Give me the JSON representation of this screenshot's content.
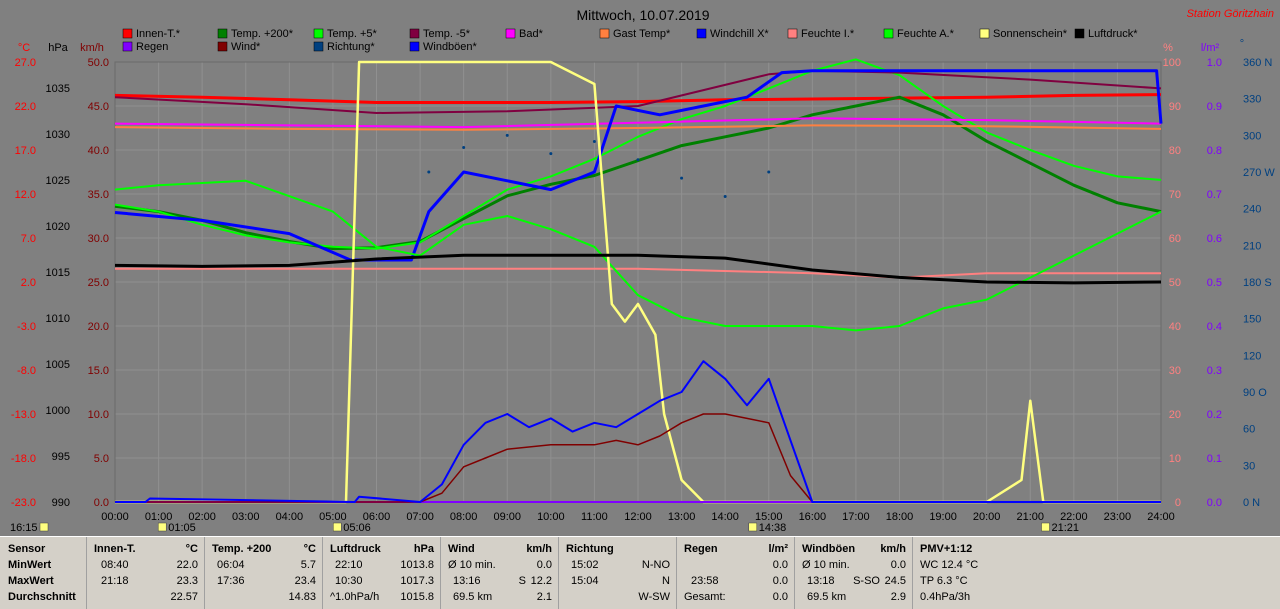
{
  "title": "Mittwoch, 10.07.2019",
  "station": "Station Göritzhain",
  "colors": {
    "background": "#808080",
    "innen_t": "#ff0000",
    "temp200": "#008000",
    "temp5": "#00ff00",
    "temp_minus5": "#800040",
    "bad": "#ff00ff",
    "gast": "#ff8040",
    "windchill": "#0000ff",
    "feuchte_i": "#ff8080",
    "feuchte_a": "#00ff00",
    "sonne": "#ffff80",
    "luftdruck": "#000000",
    "regen": "#8000ff",
    "wind": "#800000",
    "richtung": "#004080",
    "windboeen": "#0000ff"
  },
  "axes": {
    "celsius": {
      "unit": "°C",
      "ticks": [
        "27.0",
        "22.0",
        "17.0",
        "12.0",
        "7.0",
        "2.0",
        "-3.0",
        "-8.0",
        "-13.0",
        "-18.0",
        "-23.0"
      ]
    },
    "hpa": {
      "unit": "hPa",
      "ticks": [
        "1035",
        "1030",
        "1025",
        "1020",
        "1015",
        "1010",
        "1005",
        "1000",
        "995",
        "990"
      ]
    },
    "kmh": {
      "unit": "km/h",
      "ticks": [
        "50.0",
        "45.0",
        "40.0",
        "35.0",
        "30.0",
        "25.0",
        "20.0",
        "15.0",
        "10.0",
        "5.0",
        "0.0"
      ]
    },
    "percent": {
      "unit": "%",
      "ticks": [
        "100",
        "90",
        "80",
        "70",
        "60",
        "50",
        "40",
        "30",
        "20",
        "10",
        "0"
      ]
    },
    "lm2": {
      "unit": "l/m²",
      "ticks": [
        "1.0",
        "0.9",
        "0.8",
        "0.7",
        "0.6",
        "0.5",
        "0.4",
        "0.3",
        "0.2",
        "0.1",
        "0.0"
      ]
    },
    "direction": {
      "unit": "°",
      "ticks": [
        "360 N",
        "330",
        "300",
        "270 W",
        "240",
        "210",
        "180 S",
        "150",
        "120",
        "90 O",
        "60",
        "30",
        "0 N"
      ]
    },
    "time": [
      "00:00",
      "01:00",
      "02:00",
      "03:00",
      "04:00",
      "05:00",
      "06:00",
      "07:00",
      "08:00",
      "09:00",
      "10:00",
      "11:00",
      "12:00",
      "13:00",
      "14:00",
      "15:00",
      "16:00",
      "17:00",
      "18:00",
      "19:00",
      "20:00",
      "21:00",
      "22:00",
      "23:00",
      "24:00"
    ]
  },
  "markers": {
    "moonset": "01:05",
    "sunrise": "05:06",
    "moonrise": "14:38",
    "sunset": "21:21",
    "daylight": "16:15"
  },
  "legend": [
    {
      "label": "Innen-T.*",
      "color": "#ff0000"
    },
    {
      "label": "Temp. +200*",
      "color": "#008000"
    },
    {
      "label": "Temp. +5*",
      "color": "#00ff00"
    },
    {
      "label": "Temp. -5*",
      "color": "#800040"
    },
    {
      "label": "Bad*",
      "color": "#ff00ff"
    },
    {
      "label": "Gast Temp*",
      "color": "#ff8040"
    },
    {
      "label": "Windchill X*",
      "color": "#0000ff"
    },
    {
      "label": "Feuchte I.*",
      "color": "#ff8080"
    },
    {
      "label": "Feuchte A.*",
      "color": "#00ff00"
    },
    {
      "label": "Sonnenschein*",
      "color": "#ffff80"
    },
    {
      "label": "Luftdruck*",
      "color": "#000000"
    },
    {
      "label": "Regen",
      "color": "#8000ff"
    },
    {
      "label": "Wind*",
      "color": "#800000"
    },
    {
      "label": "Richtung*",
      "color": "#004080"
    },
    {
      "label": "Windböen*",
      "color": "#0000ff"
    }
  ],
  "chart_data": {
    "type": "line",
    "x_unit": "h",
    "series": [
      {
        "name": "Innen-T.*",
        "axis": "celsius",
        "x": [
          0,
          2,
          4,
          6,
          8,
          10,
          12,
          14,
          16,
          18,
          20,
          22,
          24
        ],
        "y": [
          23.2,
          23.0,
          22.7,
          22.4,
          22.4,
          22.4,
          22.5,
          22.7,
          22.8,
          22.9,
          23.0,
          23.2,
          23.3
        ]
      },
      {
        "name": "Temp. +200*",
        "axis": "celsius",
        "x": [
          0,
          1,
          2,
          3,
          4,
          5,
          6,
          7,
          8,
          9,
          10,
          11,
          12,
          13,
          14,
          15,
          16,
          17,
          18,
          19,
          20,
          21,
          22,
          23,
          24
        ],
        "y": [
          10.6,
          10.0,
          9.0,
          7.6,
          6.6,
          5.8,
          5.9,
          6.6,
          9.2,
          11.8,
          13.1,
          14.1,
          15.8,
          17.5,
          18.5,
          19.5,
          21.0,
          22.0,
          23.0,
          21.0,
          18.0,
          15.5,
          13.0,
          11.0,
          10.0
        ]
      },
      {
        "name": "Temp. +5*",
        "axis": "celsius",
        "x": [
          0,
          1,
          2,
          3,
          4,
          5,
          6,
          7,
          8,
          9,
          10,
          11,
          12,
          13,
          14,
          15,
          16,
          17,
          18,
          19,
          20,
          21,
          22,
          23,
          24
        ],
        "y": [
          10.8,
          10.0,
          8.5,
          7.3,
          6.5,
          6.0,
          5.8,
          6.5,
          9.5,
          12.5,
          14.0,
          16.0,
          18.5,
          20.5,
          22.0,
          24.0,
          26.0,
          27.3,
          25.5,
          22.0,
          19.0,
          17.0,
          15.2,
          14.0,
          13.6
        ]
      },
      {
        "name": "Temp. -5*",
        "axis": "celsius",
        "x": [
          0,
          3,
          6,
          9,
          12,
          15,
          16,
          18,
          21,
          24
        ],
        "y": [
          23.0,
          22.2,
          21.2,
          21.4,
          22.0,
          25.6,
          26.0,
          25.8,
          25.0,
          24.0
        ]
      },
      {
        "name": "Bad*",
        "axis": "celsius",
        "x": [
          0,
          4,
          8,
          12,
          16,
          20,
          24
        ],
        "y": [
          20.0,
          19.8,
          19.6,
          20.1,
          20.6,
          20.4,
          20.0
        ]
      },
      {
        "name": "Gast Temp*",
        "axis": "celsius",
        "x": [
          0,
          4,
          8,
          12,
          16,
          20,
          24
        ],
        "y": [
          19.6,
          19.4,
          19.3,
          19.5,
          19.8,
          19.7,
          19.4
        ]
      },
      {
        "name": "Windchill X*",
        "axis": "celsius",
        "x": [
          0,
          2,
          4,
          5.4,
          6.8,
          7.2,
          8,
          9,
          10,
          11,
          11.5,
          12.5,
          13.5,
          14.5,
          15.3,
          16,
          18,
          20,
          22,
          23.9,
          24
        ],
        "y": [
          9.9,
          9.0,
          7.5,
          4.5,
          4.5,
          10.0,
          14.5,
          13.5,
          12.5,
          14.5,
          22.0,
          21.0,
          22.0,
          23.0,
          25.8,
          26.0,
          26.0,
          26.0,
          26.0,
          26.0,
          20.0
        ]
      },
      {
        "name": "Feuchte I.*",
        "axis": "percent",
        "x": [
          0,
          4,
          8,
          12,
          16,
          18,
          20,
          24
        ],
        "y": [
          53,
          53,
          53,
          53,
          52,
          51,
          52,
          52
        ]
      },
      {
        "name": "Feuchte A.*",
        "axis": "percent",
        "x": [
          0,
          1,
          3,
          5,
          6,
          7,
          8,
          9,
          10,
          11,
          12,
          13,
          14,
          15,
          16,
          17,
          18,
          19,
          20,
          21,
          22,
          23,
          24
        ],
        "y": [
          71,
          72,
          73,
          66,
          58,
          56,
          63,
          65,
          62,
          58,
          47,
          42,
          40,
          40,
          40,
          39,
          40,
          44,
          46,
          51,
          56,
          61,
          66
        ]
      },
      {
        "name": "Sonnenschein*",
        "axis": "percent",
        "x": [
          0,
          5.3,
          5.6,
          6.3,
          7,
          8,
          9,
          10,
          11,
          11.4,
          11.7,
          12,
          12.4,
          12.6,
          13,
          13.5,
          14,
          20,
          20.8,
          21,
          21.3,
          22,
          24
        ],
        "y": [
          0,
          0,
          100,
          100,
          100,
          100,
          100,
          100,
          95,
          45,
          41,
          45,
          38,
          20,
          5,
          0,
          0,
          0,
          5,
          23,
          0,
          0,
          0
        ]
      },
      {
        "name": "Luftdruck*",
        "axis": "hpa",
        "x": [
          0,
          2,
          4,
          6,
          8,
          10,
          12,
          14,
          16,
          18,
          20,
          22,
          24
        ],
        "y": [
          1015.7,
          1015.6,
          1015.7,
          1016.4,
          1016.8,
          1016.8,
          1016.8,
          1016.5,
          1015.2,
          1014.4,
          1013.9,
          1013.8,
          1013.9
        ]
      },
      {
        "name": "Regen",
        "axis": "lm2",
        "x": [
          0,
          24
        ],
        "y": [
          0.0,
          0.0
        ]
      },
      {
        "name": "Wind*",
        "axis": "kmh",
        "x": [
          0,
          5.6,
          7,
          7.5,
          8,
          8.5,
          9,
          10,
          11,
          11.5,
          12,
          12.5,
          13,
          13.5,
          14,
          14.5,
          15,
          15.5,
          16,
          24
        ],
        "y": [
          0,
          0,
          0,
          1.0,
          4.0,
          5.0,
          6.0,
          6.5,
          6.5,
          7.0,
          6.5,
          7.5,
          9.0,
          10.0,
          10.0,
          9.5,
          9.0,
          3.0,
          0,
          0
        ]
      },
      {
        "name": "Richtung*",
        "axis": "direction",
        "x": [
          7.2,
          8,
          9,
          10,
          11,
          12,
          13,
          14,
          15
        ],
        "y": [
          270,
          290,
          300,
          285,
          295,
          280,
          265,
          250,
          270
        ]
      },
      {
        "name": "Windböen*",
        "axis": "kmh",
        "x": [
          0,
          0.7,
          0.8,
          5.5,
          5.6,
          7,
          7.5,
          8,
          8.5,
          9,
          9.5,
          10,
          10.5,
          11,
          11.5,
          12,
          12.5,
          13,
          13.5,
          14,
          14.5,
          15,
          15.5,
          16,
          24
        ],
        "y": [
          0,
          0,
          0.4,
          0,
          0.6,
          0,
          2.0,
          6.5,
          9.0,
          10.0,
          8.5,
          9.5,
          8.0,
          9.0,
          8.5,
          10.0,
          11.5,
          12.5,
          16.0,
          14.0,
          11.0,
          14.0,
          7.0,
          0,
          0
        ]
      }
    ]
  },
  "summary": {
    "sensor": {
      "header": "Sensor",
      "rows": [
        "MinWert",
        "MaxWert",
        "Durchschnitt"
      ]
    },
    "innen_t": {
      "header": "Innen-T.",
      "unit": "°C",
      "min_time": "08:40",
      "min": "22.0",
      "max_time": "21:18",
      "max": "23.3",
      "avg": "22.57"
    },
    "temp200": {
      "header": "Temp. +200",
      "unit": "°C",
      "min_time": "06:04",
      "min": "5.7",
      "max_time": "17:36",
      "max": "23.4",
      "avg": "14.83"
    },
    "luftdruck": {
      "header": "Luftdruck",
      "unit": "hPa",
      "min_time": "22:10",
      "min": "1013.8",
      "max_time": "10:30",
      "max": "1017.3",
      "avg_label": "^1.0hPa/h",
      "avg": "1015.8"
    },
    "wind": {
      "header": "Wind",
      "unit": "km/h",
      "min_label": "Ø 10 min.",
      "min": "0.0",
      "max_time": "13:16",
      "max_dir": "S",
      "max": "12.2",
      "avg_label": "69.5 km",
      "avg": "2.1"
    },
    "richtung": {
      "header": "Richtung",
      "min_time": "15:02",
      "min": "N-NO",
      "max_time": "15:04",
      "max": "N",
      "avg": "W-SW"
    },
    "regen": {
      "header": "Regen",
      "unit": "l/m²",
      "min": "0.0",
      "max_time": "23:58",
      "max": "0.0",
      "avg_label": "Gesamt:",
      "avg": "0.0"
    },
    "windboeen": {
      "header": "Windböen",
      "unit": "km/h",
      "min_label": "Ø 10 min.",
      "min": "0.0",
      "max_time": "13:18",
      "max_dir": "S-SO",
      "max": "24.5",
      "avg_label": "69.5 km",
      "avg": "2.9"
    },
    "pmv": {
      "header": "PMV+1:12",
      "row1": "WC 12.4 °C",
      "row2": "TP 6.3 °C",
      "row3": "0.4hPa/3h"
    }
  }
}
